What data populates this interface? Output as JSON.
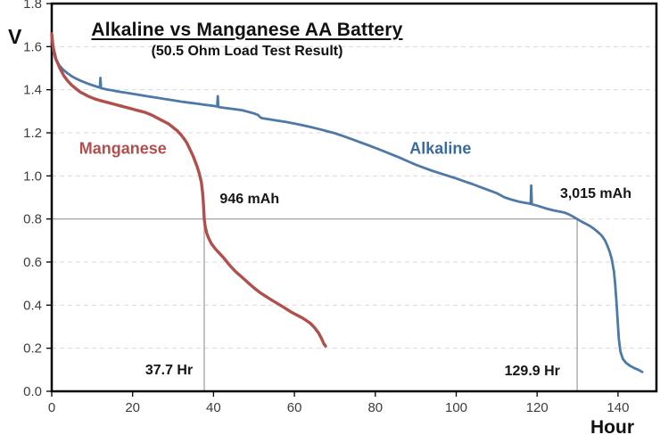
{
  "title": "Alkaline vs Manganese AA Battery",
  "subtitle": "(50.5 Ohm Load Test Result)",
  "colors": {
    "manganese": "#B0504D",
    "alkaline": "#4E79A7",
    "alkaline_label": "#3A6B9C",
    "grid": "#D9D9D9",
    "reference": "#9A9A9A",
    "frame": "#000000",
    "tick_text": "#3D3D3D",
    "annotation_text": "#151515"
  },
  "chart_data": {
    "type": "line",
    "title": "Alkaline vs Manganese AA Battery",
    "subtitle": "(50.5 Ohm Load Test Result)",
    "xlabel": "Hour",
    "ylabel": "V",
    "xlim": [
      0,
      149.5
    ],
    "ylim": [
      0,
      1.8
    ],
    "x_ticks": [
      0,
      20,
      40,
      60,
      80,
      100,
      120,
      140
    ],
    "y_ticks": [
      0.0,
      0.2,
      0.4,
      0.6,
      0.8,
      1.0,
      1.2,
      1.4,
      1.6,
      1.8
    ],
    "grid": "horizontal dashed",
    "legend_position": "inline labels",
    "reference_lines": {
      "horizontal_v": 0.8,
      "vertical_hr": [
        37.7,
        129.9
      ]
    },
    "series_labels": [
      {
        "text": "Manganese",
        "x": 17.6,
        "y": 1.125,
        "color": "#B0504D"
      },
      {
        "text": "Alkaline",
        "x": 96.1,
        "y": 1.125,
        "color": "#3A6B9C"
      }
    ],
    "annotations": [
      {
        "text": "946 mAh",
        "x": 48.9,
        "y": 0.89
      },
      {
        "text": "3,015 mAh",
        "x": 134.5,
        "y": 0.915
      },
      {
        "text": "37.7 Hr",
        "x": 29.0,
        "y": 0.095
      },
      {
        "text": "129.9 Hr",
        "x": 118.8,
        "y": 0.09
      }
    ],
    "series": [
      {
        "name": "Alkaline",
        "color": "#4E79A7",
        "width": 2.8,
        "capacity_mah": 3015,
        "cutoff_hours": 129.9,
        "points": [
          [
            0,
            1.65
          ],
          [
            0.4,
            1.58
          ],
          [
            1,
            1.54
          ],
          [
            2,
            1.51
          ],
          [
            3,
            1.49
          ],
          [
            4,
            1.475
          ],
          [
            5,
            1.462
          ],
          [
            6,
            1.452
          ],
          [
            7,
            1.443
          ],
          [
            8,
            1.435
          ],
          [
            9,
            1.428
          ],
          [
            10,
            1.421
          ],
          [
            11,
            1.415
          ],
          [
            11.9,
            1.41
          ],
          [
            12.05,
            1.455
          ],
          [
            12.2,
            1.408
          ],
          [
            13,
            1.404
          ],
          [
            14,
            1.4
          ],
          [
            15,
            1.397
          ],
          [
            16,
            1.393
          ],
          [
            17,
            1.39
          ],
          [
            18,
            1.387
          ],
          [
            19,
            1.384
          ],
          [
            20,
            1.381
          ],
          [
            22,
            1.375
          ],
          [
            24,
            1.369
          ],
          [
            26,
            1.363
          ],
          [
            28,
            1.357
          ],
          [
            30,
            1.351
          ],
          [
            32,
            1.345
          ],
          [
            34,
            1.34
          ],
          [
            36,
            1.335
          ],
          [
            38,
            1.33
          ],
          [
            40,
            1.325
          ],
          [
            40.9,
            1.322
          ],
          [
            41.05,
            1.37
          ],
          [
            41.2,
            1.32
          ],
          [
            43,
            1.315
          ],
          [
            45,
            1.31
          ],
          [
            47,
            1.305
          ],
          [
            48,
            1.3
          ],
          [
            49,
            1.295
          ],
          [
            50,
            1.29
          ],
          [
            51,
            1.283
          ],
          [
            51.5,
            1.273
          ],
          [
            52,
            1.268
          ],
          [
            54,
            1.262
          ],
          [
            56,
            1.256
          ],
          [
            58,
            1.25
          ],
          [
            60,
            1.243
          ],
          [
            62,
            1.235
          ],
          [
            64,
            1.227
          ],
          [
            66,
            1.218
          ],
          [
            68,
            1.208
          ],
          [
            70,
            1.198
          ],
          [
            72,
            1.185
          ],
          [
            74,
            1.172
          ],
          [
            76,
            1.158
          ],
          [
            78,
            1.144
          ],
          [
            80,
            1.13
          ],
          [
            82,
            1.115
          ],
          [
            84,
            1.1
          ],
          [
            86,
            1.085
          ],
          [
            88,
            1.068
          ],
          [
            90,
            1.052
          ],
          [
            92,
            1.038
          ],
          [
            94,
            1.024
          ],
          [
            96,
            1.012
          ],
          [
            98,
            1.0
          ],
          [
            100,
            0.988
          ],
          [
            102,
            0.975
          ],
          [
            104,
            0.962
          ],
          [
            106,
            0.948
          ],
          [
            108,
            0.934
          ],
          [
            110,
            0.92
          ],
          [
            112,
            0.9
          ],
          [
            114,
            0.888
          ],
          [
            116,
            0.878
          ],
          [
            118,
            0.872
          ],
          [
            118.4,
            0.87
          ],
          [
            118.55,
            0.955
          ],
          [
            118.7,
            0.868
          ],
          [
            120,
            0.862
          ],
          [
            122,
            0.85
          ],
          [
            124,
            0.84
          ],
          [
            126,
            0.833
          ],
          [
            127,
            0.828
          ],
          [
            128,
            0.82
          ],
          [
            129,
            0.81
          ],
          [
            129.9,
            0.8
          ],
          [
            130.8,
            0.79
          ],
          [
            132,
            0.778
          ],
          [
            133,
            0.768
          ],
          [
            134,
            0.755
          ],
          [
            135,
            0.74
          ],
          [
            136,
            0.722
          ],
          [
            136.8,
            0.7
          ],
          [
            137.4,
            0.675
          ],
          [
            138,
            0.645
          ],
          [
            138.5,
            0.61
          ],
          [
            139,
            0.555
          ],
          [
            139.3,
            0.5
          ],
          [
            139.6,
            0.42
          ],
          [
            139.9,
            0.33
          ],
          [
            140.2,
            0.245
          ],
          [
            140.6,
            0.185
          ],
          [
            141.2,
            0.15
          ],
          [
            142,
            0.132
          ],
          [
            143,
            0.118
          ],
          [
            144,
            0.108
          ],
          [
            145,
            0.1
          ],
          [
            146,
            0.09
          ]
        ]
      },
      {
        "name": "Manganese",
        "color": "#B0504D",
        "width": 3.4,
        "capacity_mah": 946,
        "cutoff_hours": 37.7,
        "points": [
          [
            0,
            1.66
          ],
          [
            0.3,
            1.6
          ],
          [
            1,
            1.545
          ],
          [
            2,
            1.5
          ],
          [
            3,
            1.465
          ],
          [
            4,
            1.44
          ],
          [
            5,
            1.42
          ],
          [
            6,
            1.405
          ],
          [
            7,
            1.39
          ],
          [
            8,
            1.38
          ],
          [
            9,
            1.37
          ],
          [
            10,
            1.362
          ],
          [
            11,
            1.355
          ],
          [
            12,
            1.35
          ],
          [
            13,
            1.345
          ],
          [
            14,
            1.34
          ],
          [
            15,
            1.335
          ],
          [
            16,
            1.33
          ],
          [
            17,
            1.325
          ],
          [
            18,
            1.32
          ],
          [
            19,
            1.315
          ],
          [
            20,
            1.31
          ],
          [
            21,
            1.305
          ],
          [
            22,
            1.3
          ],
          [
            23,
            1.295
          ],
          [
            24,
            1.288
          ],
          [
            25,
            1.28
          ],
          [
            26,
            1.27
          ],
          [
            27,
            1.26
          ],
          [
            28,
            1.25
          ],
          [
            29,
            1.24
          ],
          [
            30,
            1.225
          ],
          [
            31,
            1.21
          ],
          [
            32,
            1.19
          ],
          [
            33,
            1.165
          ],
          [
            33.5,
            1.15
          ],
          [
            34,
            1.13
          ],
          [
            34.5,
            1.11
          ],
          [
            35,
            1.09
          ],
          [
            35.5,
            1.065
          ],
          [
            36,
            1.04
          ],
          [
            36.5,
            1.01
          ],
          [
            37,
            0.97
          ],
          [
            37.3,
            0.92
          ],
          [
            37.5,
            0.87
          ],
          [
            37.7,
            0.8
          ],
          [
            37.9,
            0.77
          ],
          [
            38.3,
            0.735
          ],
          [
            38.8,
            0.71
          ],
          [
            39.5,
            0.685
          ],
          [
            40.5,
            0.66
          ],
          [
            41.5,
            0.64
          ],
          [
            42.5,
            0.62
          ],
          [
            44,
            0.585
          ],
          [
            45.5,
            0.555
          ],
          [
            47,
            0.53
          ],
          [
            48.5,
            0.505
          ],
          [
            50,
            0.48
          ],
          [
            51.5,
            0.458
          ],
          [
            53,
            0.44
          ],
          [
            54.5,
            0.422
          ],
          [
            56,
            0.405
          ],
          [
            57.5,
            0.388
          ],
          [
            59,
            0.37
          ],
          [
            60.5,
            0.355
          ],
          [
            62,
            0.34
          ],
          [
            63,
            0.328
          ],
          [
            64,
            0.315
          ],
          [
            65,
            0.295
          ],
          [
            66,
            0.27
          ],
          [
            66.7,
            0.245
          ],
          [
            67.3,
            0.22
          ],
          [
            67.7,
            0.21
          ]
        ]
      }
    ]
  }
}
